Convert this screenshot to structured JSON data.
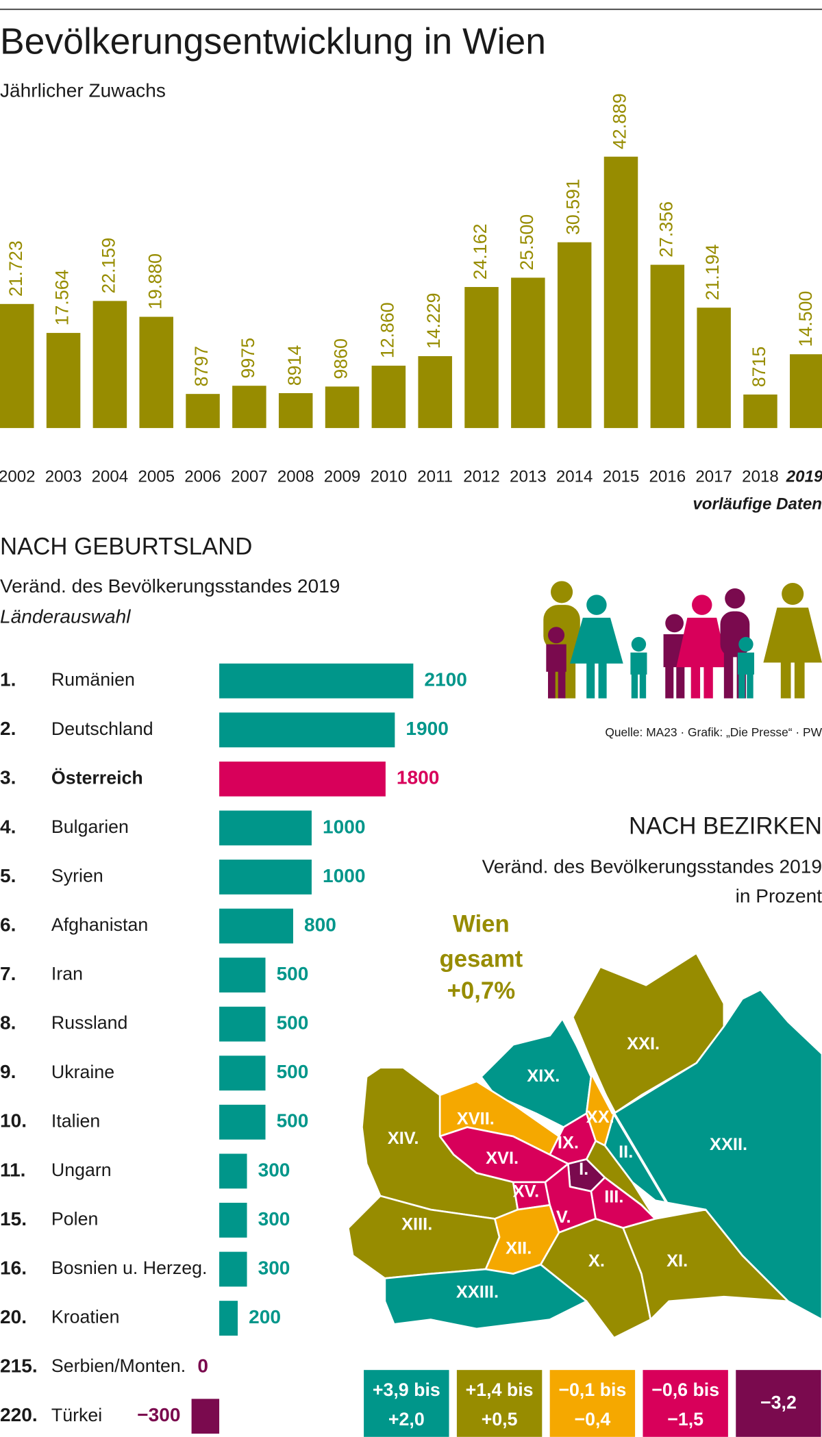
{
  "chart_data": [
    {
      "type": "bar",
      "title": "Bevölkerungsentwicklung in Wien",
      "subtitle": "Jährlicher Zuwachs",
      "categories": [
        "2002",
        "2003",
        "2004",
        "2005",
        "2006",
        "2007",
        "2008",
        "2009",
        "2010",
        "2011",
        "2012",
        "2013",
        "2014",
        "2015",
        "2016",
        "2017",
        "2018",
        "2019"
      ],
      "values": [
        21723,
        17564,
        22159,
        19880,
        8797,
        9975,
        8914,
        9860,
        12860,
        14229,
        24162,
        25500,
        30591,
        42889,
        27356,
        21194,
        8715,
        14500
      ],
      "value_labels": [
        "21.723",
        "17.564",
        "22.159",
        "19.880",
        "8797",
        "9975",
        "8914",
        "9860",
        "12.860",
        "14.229",
        "24.162",
        "25.500",
        "30.591",
        "42.889",
        "27.356",
        "21.194",
        "8715",
        "14.500"
      ],
      "color": "#978c00",
      "ylim": [
        3900,
        43000
      ],
      "note": "vorläufige Daten",
      "provisional_index": 17
    },
    {
      "type": "hbar",
      "title": "NACH GEBURTSLAND",
      "subtitle": "Veränd. des Bevölkerungsstandes 2019",
      "subtitle2": "Länderauswahl",
      "ranks": [
        "1.",
        "2.",
        "3.",
        "4.",
        "5.",
        "6.",
        "7.",
        "8.",
        "9.",
        "10.",
        "11.",
        "15.",
        "16.",
        "20.",
        "215.",
        "220."
      ],
      "categories": [
        "Rumänien",
        "Deutschland",
        "Österreich",
        "Bulgarien",
        "Syrien",
        "Afghanistan",
        "Iran",
        "Russland",
        "Ukraine",
        "Italien",
        "Ungarn",
        "Polen",
        "Bosnien u. Herzeg.",
        "Kroatien",
        "Serbien/Monten.",
        "Türkei"
      ],
      "values": [
        2100,
        1900,
        1800,
        1000,
        1000,
        800,
        500,
        500,
        500,
        500,
        300,
        300,
        300,
        200,
        0,
        -300
      ],
      "value_labels": [
        "2100",
        "1900",
        "1800",
        "1000",
        "1000",
        "800",
        "500",
        "500",
        "500",
        "500",
        "300",
        "300",
        "300",
        "200",
        "0",
        "−300"
      ],
      "colors": [
        "#00968a",
        "#00968a",
        "#d8005a",
        "#00968a",
        "#00968a",
        "#00968a",
        "#00968a",
        "#00968a",
        "#00968a",
        "#00968a",
        "#00968a",
        "#00968a",
        "#00968a",
        "#00968a",
        "#7a0a4e",
        "#7a0a4e"
      ],
      "xlim": [
        -300,
        2100
      ],
      "highlight": 2
    }
  ],
  "source": "Quelle: MA23 · Grafik: „Die Presse“ · PW",
  "map": {
    "title": "NACH BEZIRKEN",
    "subtitle": [
      "Veränd. des Bevölkerungsstandes 2019",
      "in Prozent"
    ],
    "total": [
      "Wien",
      "gesamt",
      "+0,7%"
    ],
    "legend": [
      {
        "label": [
          "+3,9 bis",
          "+2,0"
        ],
        "color": "#00968a"
      },
      {
        "label": [
          "+1,4 bis",
          "+0,5"
        ],
        "color": "#978c00"
      },
      {
        "label": [
          "−0,1 bis",
          "−0,4"
        ],
        "color": "#f5a800"
      },
      {
        "label": [
          "−0,6 bis",
          "−1,5"
        ],
        "color": "#d8005a"
      },
      {
        "label": [
          "−3,2"
        ],
        "color": "#7a0a4e"
      }
    ],
    "districts": [
      {
        "label": "XXI.",
        "class": 1
      },
      {
        "label": "XXII.",
        "class": 0
      },
      {
        "label": "XIX.",
        "class": 0
      },
      {
        "label": "XX.",
        "class": 2
      },
      {
        "label": "II.",
        "class": 1
      },
      {
        "label": "IX.",
        "class": 3
      },
      {
        "label": "I.",
        "class": 4
      },
      {
        "label": "III.",
        "class": 3
      },
      {
        "label": "XVII.",
        "class": 2
      },
      {
        "label": "XVI.",
        "class": 3
      },
      {
        "label": "XIV.",
        "class": 1
      },
      {
        "label": "XV.",
        "class": 3
      },
      {
        "label": "V.",
        "class": 3
      },
      {
        "label": "XIII.",
        "class": 1
      },
      {
        "label": "XII.",
        "class": 2
      },
      {
        "label": "X.",
        "class": 1
      },
      {
        "label": "XI.",
        "class": 1
      },
      {
        "label": "XXIII.",
        "class": 0
      }
    ]
  }
}
